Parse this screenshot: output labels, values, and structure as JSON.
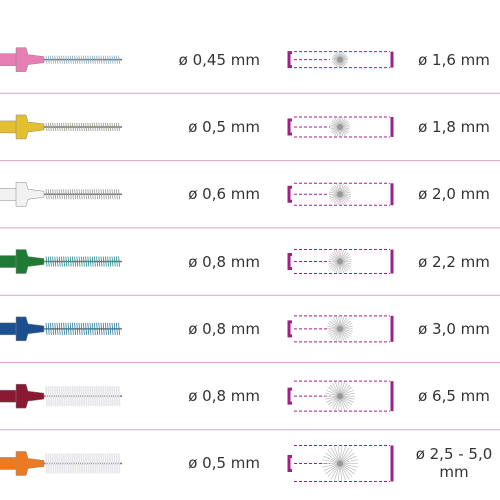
{
  "rows": [
    {
      "color": "#e87fb4",
      "wire": "ø 0,45 mm",
      "size": "ø 1,6 mm"
    },
    {
      "color": "#e3c02f",
      "wire": "ø 0,5 mm",
      "size": "ø 1,8 mm"
    },
    {
      "color": "#f2f2f2",
      "wire": "ø 0,6 mm",
      "size": "ø 2,0 mm"
    },
    {
      "color": "#1f7a35",
      "wire": "ø 0,8 mm",
      "size": "ø 2,2 mm"
    },
    {
      "color": "#1b4f8f",
      "wire": "ø 0,8 mm",
      "size": "ø 3,0 mm"
    },
    {
      "color": "#8a1a33",
      "wire": "ø 0,8 mm",
      "size": "ø 6,5 mm"
    },
    {
      "color": "#ec7a22",
      "wire": "ø 0,5 mm",
      "size": "ø 2,5 - 5,0 mm"
    }
  ]
}
